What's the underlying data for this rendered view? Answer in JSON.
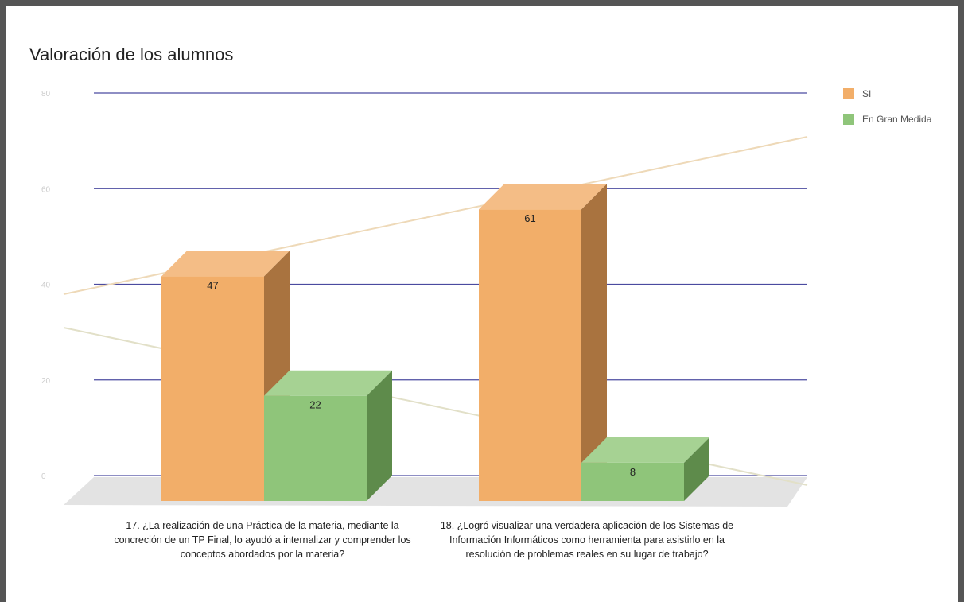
{
  "chart_data": {
    "type": "bar",
    "title": "Valoración de los alumnos",
    "categories": [
      "17. ¿La realización de una Práctica de la materia, mediante la concreción de un TP Final, lo ayudó a internalizar y comprender los conceptos abordados por la materia?",
      "18. ¿Logró visualizar una verdadera aplicación de los Sistemas de Información Informáticos como herramienta para asistirlo en la resolución de problemas reales en su lugar de trabajo?"
    ],
    "series": [
      {
        "name": "SI",
        "values": [
          47,
          61
        ],
        "color": "#F2AE69",
        "side_color": "#A9733F",
        "top_color": "#F4BD86"
      },
      {
        "name": "En Gran Medida",
        "values": [
          22,
          8
        ],
        "color": "#8FC57A",
        "side_color": "#5E8B4B",
        "top_color": "#A6D293"
      }
    ],
    "y_ticks": [
      "80",
      "60",
      "40",
      "20",
      "0"
    ],
    "ylim": [
      0,
      80
    ],
    "gridlines": true,
    "grid_color": "#4B4BA0",
    "legend_position": "right",
    "style": "3d"
  }
}
